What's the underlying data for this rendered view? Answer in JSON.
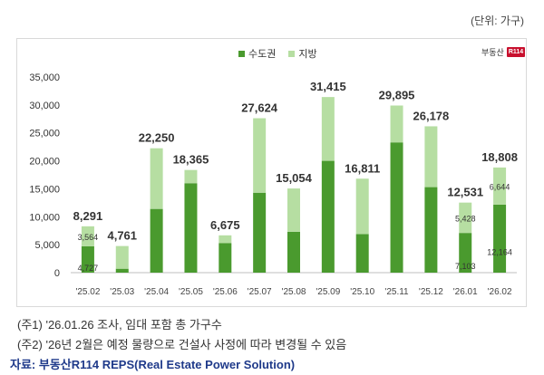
{
  "unit_label": "(단위: 가구)",
  "logo": {
    "text": "부동산",
    "mark": "R114"
  },
  "colors": {
    "capital": "#4a9a2e",
    "local": "#b6dea2"
  },
  "chart_data": {
    "type": "bar",
    "stacked": true,
    "categories": [
      "'25.02",
      "'25.03",
      "'25.04",
      "'25.05",
      "'25.06",
      "'25.07",
      "'25.08",
      "'25.09",
      "'25.10",
      "'25.11",
      "'25.12",
      "'26.01",
      "'26.02"
    ],
    "series": [
      {
        "name": "수도권",
        "values": [
          4727,
          700,
          11400,
          16000,
          5300,
          14300,
          7300,
          20000,
          6900,
          23300,
          15300,
          7103,
          12164
        ]
      },
      {
        "name": "지방",
        "values": [
          3564,
          4061,
          10850,
          2365,
          1375,
          13324,
          7754,
          11415,
          9911,
          6595,
          10878,
          5428,
          6644
        ]
      }
    ],
    "totals": [
      8291,
      4761,
      22250,
      18365,
      6675,
      27624,
      15054,
      31415,
      16811,
      29895,
      26178,
      12531,
      18808
    ],
    "total_labels": [
      "8,291",
      "4,761",
      "22,250",
      "18,365",
      "6,675",
      "27,624",
      "15,054",
      "31,415",
      "16,811",
      "29,895",
      "26,178",
      "12,531",
      "18,808"
    ],
    "segment_labels": [
      {
        "index": 0,
        "capital": "4,727",
        "local": "3,564"
      },
      {
        "index": 11,
        "capital": "7,103",
        "local": "5,428"
      },
      {
        "index": 12,
        "capital": "12,164",
        "local": "6,644"
      }
    ],
    "yticks": [
      0,
      5000,
      10000,
      15000,
      20000,
      25000,
      30000,
      35000
    ],
    "ytick_labels": [
      "0",
      "5,000",
      "10,000",
      "15,000",
      "20,000",
      "25,000",
      "30,000",
      "35,000"
    ],
    "ylim": [
      0,
      35000
    ],
    "legend": [
      "수도권",
      "지방"
    ]
  },
  "notes": [
    "(주1) '26.01.26 조사, 임대 포함 총 가구수",
    "(주2) '26년 2월은 예정 물량으로 건설사 사정에 따라 변경될 수 있음"
  ],
  "source": "자료: 부동산R114 REPS(Real Estate Power Solution)"
}
